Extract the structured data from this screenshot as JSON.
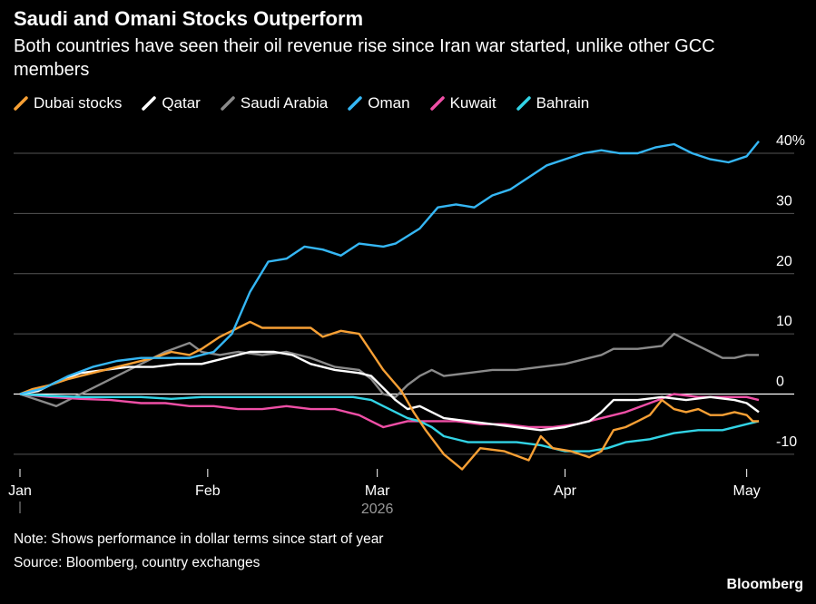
{
  "header": {
    "title": "Saudi and Omani Stocks Outperform",
    "subtitle": "Both countries have seen their oil revenue rise since Iran war started, unlike other GCC members"
  },
  "footer": {
    "note": "Note: Shows performance in dollar terms since start of year",
    "source": "Source: Bloomberg, country exchanges",
    "brand": "Bloomberg"
  },
  "chart_data": {
    "type": "line",
    "x_unit": "days since Jan 1, 2026",
    "x_range": [
      0,
      122
    ],
    "ylim": [
      -12,
      43
    ],
    "y_ticks": [
      -10,
      0,
      10,
      20,
      30,
      40
    ],
    "y_tick_labels": [
      "-10",
      "0",
      "10",
      "20",
      "30",
      "40%"
    ],
    "x_ticks": [
      {
        "x": 0,
        "label": "Jan"
      },
      {
        "x": 31,
        "label": "Feb"
      },
      {
        "x": 59,
        "label": "Mar"
      },
      {
        "x": 90,
        "label": "Apr"
      },
      {
        "x": 120,
        "label": "May"
      }
    ],
    "year_label": "2026",
    "grid": true,
    "legend_position": "top-left",
    "series": [
      {
        "name": "Dubai stocks",
        "color": "#f7a035",
        "points": [
          [
            0,
            0
          ],
          [
            2,
            0.8
          ],
          [
            5,
            1.5
          ],
          [
            8,
            2.5
          ],
          [
            10,
            3
          ],
          [
            14,
            4
          ],
          [
            18,
            5
          ],
          [
            22,
            6
          ],
          [
            25,
            7
          ],
          [
            28,
            6.5
          ],
          [
            30,
            7.5
          ],
          [
            33,
            9.5
          ],
          [
            36,
            11
          ],
          [
            38,
            12
          ],
          [
            40,
            11
          ],
          [
            44,
            11
          ],
          [
            48,
            11
          ],
          [
            50,
            9.5
          ],
          [
            53,
            10.5
          ],
          [
            56,
            10
          ],
          [
            58,
            7
          ],
          [
            60,
            4
          ],
          [
            63,
            0.5
          ],
          [
            65,
            -3
          ],
          [
            67,
            -6
          ],
          [
            70,
            -10
          ],
          [
            73,
            -12.5
          ],
          [
            76,
            -9
          ],
          [
            80,
            -9.5
          ],
          [
            84,
            -11
          ],
          [
            86,
            -7
          ],
          [
            88,
            -9
          ],
          [
            91,
            -9.5
          ],
          [
            94,
            -10.5
          ],
          [
            96,
            -9.5
          ],
          [
            98,
            -6
          ],
          [
            100,
            -5.5
          ],
          [
            102,
            -4.5
          ],
          [
            104,
            -3.5
          ],
          [
            106,
            -1
          ],
          [
            108,
            -2.5
          ],
          [
            110,
            -3
          ],
          [
            112,
            -2.5
          ],
          [
            114,
            -3.5
          ],
          [
            116,
            -3.5
          ],
          [
            118,
            -3
          ],
          [
            120,
            -3.5
          ],
          [
            121,
            -4.5
          ],
          [
            122,
            -4.5
          ]
        ]
      },
      {
        "name": "Qatar",
        "color": "#ffffff",
        "points": [
          [
            0,
            0
          ],
          [
            3,
            0.5
          ],
          [
            6,
            2
          ],
          [
            10,
            3.5
          ],
          [
            14,
            4
          ],
          [
            18,
            4.5
          ],
          [
            22,
            4.5
          ],
          [
            26,
            5
          ],
          [
            30,
            5
          ],
          [
            34,
            6
          ],
          [
            38,
            7
          ],
          [
            42,
            7
          ],
          [
            45,
            6.5
          ],
          [
            48,
            5
          ],
          [
            52,
            4
          ],
          [
            56,
            3.5
          ],
          [
            58,
            3
          ],
          [
            60,
            1
          ],
          [
            62,
            -1
          ],
          [
            64,
            -2.5
          ],
          [
            66,
            -2
          ],
          [
            68,
            -3
          ],
          [
            70,
            -4
          ],
          [
            74,
            -4.5
          ],
          [
            78,
            -5
          ],
          [
            82,
            -5.5
          ],
          [
            86,
            -6
          ],
          [
            90,
            -5.5
          ],
          [
            94,
            -4.5
          ],
          [
            96,
            -3
          ],
          [
            98,
            -1
          ],
          [
            102,
            -1
          ],
          [
            106,
            -0.5
          ],
          [
            110,
            -1
          ],
          [
            114,
            -0.5
          ],
          [
            118,
            -1
          ],
          [
            120,
            -1.5
          ],
          [
            122,
            -3
          ]
        ]
      },
      {
        "name": "Saudi Arabia",
        "color": "#8a8a8a",
        "points": [
          [
            0,
            0
          ],
          [
            3,
            -1
          ],
          [
            6,
            -2
          ],
          [
            9,
            -0.5
          ],
          [
            12,
            1
          ],
          [
            16,
            3
          ],
          [
            20,
            5
          ],
          [
            24,
            7
          ],
          [
            28,
            8.5
          ],
          [
            30,
            7
          ],
          [
            33,
            6.5
          ],
          [
            36,
            7
          ],
          [
            40,
            6.5
          ],
          [
            44,
            7
          ],
          [
            48,
            6
          ],
          [
            52,
            4.5
          ],
          [
            56,
            4
          ],
          [
            58,
            2.5
          ],
          [
            60,
            0
          ],
          [
            62,
            -0.5
          ],
          [
            64,
            1.5
          ],
          [
            66,
            3
          ],
          [
            68,
            4
          ],
          [
            70,
            3
          ],
          [
            74,
            3.5
          ],
          [
            78,
            4
          ],
          [
            82,
            4
          ],
          [
            86,
            4.5
          ],
          [
            90,
            5
          ],
          [
            94,
            6
          ],
          [
            96,
            6.5
          ],
          [
            98,
            7.5
          ],
          [
            102,
            7.5
          ],
          [
            106,
            8
          ],
          [
            108,
            10
          ],
          [
            110,
            9
          ],
          [
            112,
            8
          ],
          [
            114,
            7
          ],
          [
            116,
            6
          ],
          [
            118,
            6
          ],
          [
            120,
            6.5
          ],
          [
            122,
            6.5
          ]
        ]
      },
      {
        "name": "Oman",
        "color": "#35b7f5",
        "points": [
          [
            0,
            0
          ],
          [
            4,
            1
          ],
          [
            8,
            3
          ],
          [
            12,
            4.5
          ],
          [
            16,
            5.5
          ],
          [
            20,
            6
          ],
          [
            24,
            6
          ],
          [
            28,
            6
          ],
          [
            32,
            7
          ],
          [
            35,
            10
          ],
          [
            38,
            17
          ],
          [
            41,
            22
          ],
          [
            44,
            22.5
          ],
          [
            47,
            24.5
          ],
          [
            50,
            24
          ],
          [
            53,
            23
          ],
          [
            56,
            25
          ],
          [
            60,
            24.5
          ],
          [
            62,
            25
          ],
          [
            66,
            27.5
          ],
          [
            69,
            31
          ],
          [
            72,
            31.5
          ],
          [
            75,
            31
          ],
          [
            78,
            33
          ],
          [
            81,
            34
          ],
          [
            84,
            36
          ],
          [
            87,
            38
          ],
          [
            90,
            39
          ],
          [
            93,
            40
          ],
          [
            96,
            40.5
          ],
          [
            99,
            40
          ],
          [
            102,
            40
          ],
          [
            105,
            41
          ],
          [
            108,
            41.5
          ],
          [
            111,
            40
          ],
          [
            114,
            39
          ],
          [
            117,
            38.5
          ],
          [
            120,
            39.5
          ],
          [
            122,
            42
          ]
        ]
      },
      {
        "name": "Kuwait",
        "color": "#ef4fa6",
        "points": [
          [
            0,
            0
          ],
          [
            5,
            -0.5
          ],
          [
            10,
            -0.8
          ],
          [
            15,
            -1
          ],
          [
            20,
            -1.5
          ],
          [
            24,
            -1.5
          ],
          [
            28,
            -2
          ],
          [
            32,
            -2
          ],
          [
            36,
            -2.5
          ],
          [
            40,
            -2.5
          ],
          [
            44,
            -2
          ],
          [
            48,
            -2.5
          ],
          [
            52,
            -2.5
          ],
          [
            56,
            -3.5
          ],
          [
            58,
            -4.5
          ],
          [
            60,
            -5.5
          ],
          [
            62,
            -5
          ],
          [
            64,
            -4.5
          ],
          [
            68,
            -4.5
          ],
          [
            72,
            -4.5
          ],
          [
            76,
            -5
          ],
          [
            80,
            -5
          ],
          [
            84,
            -5.5
          ],
          [
            88,
            -5.5
          ],
          [
            92,
            -5
          ],
          [
            96,
            -4
          ],
          [
            100,
            -3
          ],
          [
            104,
            -1.5
          ],
          [
            108,
            0
          ],
          [
            112,
            -0.5
          ],
          [
            116,
            -0.5
          ],
          [
            120,
            -0.5
          ],
          [
            122,
            -1
          ]
        ]
      },
      {
        "name": "Bahrain",
        "color": "#32d4e6",
        "points": [
          [
            0,
            0
          ],
          [
            5,
            -0.3
          ],
          [
            10,
            -0.5
          ],
          [
            15,
            -0.5
          ],
          [
            20,
            -0.5
          ],
          [
            25,
            -0.8
          ],
          [
            30,
            -0.5
          ],
          [
            35,
            -0.5
          ],
          [
            40,
            -0.5
          ],
          [
            45,
            -0.5
          ],
          [
            50,
            -0.5
          ],
          [
            55,
            -0.5
          ],
          [
            58,
            -1
          ],
          [
            60,
            -2
          ],
          [
            62,
            -3
          ],
          [
            64,
            -4
          ],
          [
            66,
            -4.5
          ],
          [
            68,
            -5.5
          ],
          [
            70,
            -7
          ],
          [
            74,
            -8
          ],
          [
            78,
            -8
          ],
          [
            82,
            -8
          ],
          [
            86,
            -8.5
          ],
          [
            88,
            -9
          ],
          [
            90,
            -9.5
          ],
          [
            94,
            -9.5
          ],
          [
            97,
            -9
          ],
          [
            100,
            -8
          ],
          [
            104,
            -7.5
          ],
          [
            108,
            -6.5
          ],
          [
            112,
            -6
          ],
          [
            116,
            -6
          ],
          [
            120,
            -5
          ],
          [
            122,
            -4.5
          ]
        ]
      }
    ]
  }
}
